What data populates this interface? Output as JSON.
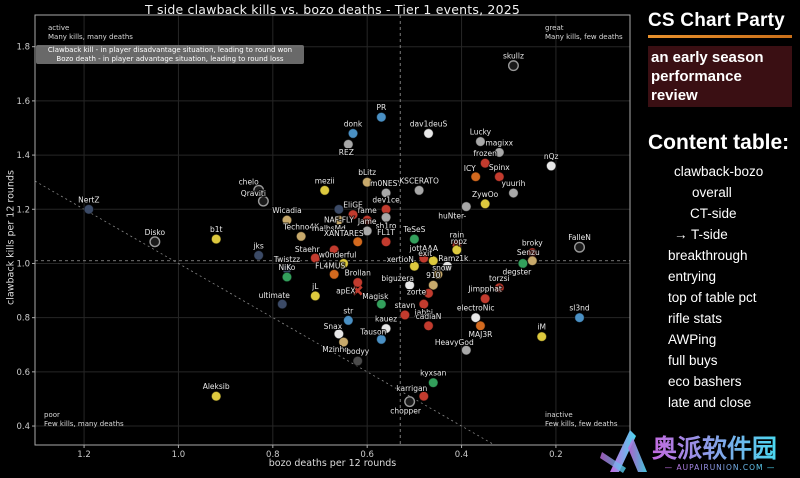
{
  "title": "T side clawback kills vs. bozo deaths - Tier 1 events, 2025",
  "plot": {
    "corner_tl": "active\nMany kills, many deaths",
    "corner_tr": "great\nMany kills, few deaths",
    "corner_bl": "poor\nFew kills, many deaths",
    "corner_br": "inactive\nFew kills, few deaths",
    "legend_line1": "Clawback kill - in player disadvantage situation, leading to round won",
    "legend_line2": "Bozo death - in player advantage situation, leading to round loss"
  },
  "chart_data": {
    "type": "scatter",
    "title": "T side clawback kills vs. bozo deaths - Tier 1 events, 2025",
    "xlabel": "bozo deaths per 12 rounds",
    "ylabel": "clawback kills per 12 rounds",
    "x_axis": {
      "ticks": [
        1.2,
        1.0,
        0.8,
        0.6,
        0.4,
        0.2
      ],
      "range_left": 1.304,
      "range_right": 0.043,
      "inverted": true
    },
    "y_axis": {
      "ticks": [
        0.4,
        0.6,
        0.8,
        1.0,
        1.2,
        1.4,
        1.6,
        1.8
      ],
      "range_bottom": 0.33,
      "range_top": 1.917
    },
    "mean_x": 0.53,
    "mean_y": 1.01,
    "identity_line": true,
    "grid": true,
    "palette": {
      "red": "#c23b2e",
      "orange": "#d2691e",
      "yellow": "#ddc93e",
      "khaki": "#c7a96b",
      "green": "#33a05c",
      "blue": "#4a90c4",
      "navy": "#3b4a66",
      "white": "#e8e8e8",
      "gray": "#a8a8a8",
      "dark": "#4a4a4a",
      "open": "#1a1a1a"
    },
    "points": [
      {
        "name": "skullz",
        "x": 0.29,
        "y": 1.73,
        "c": "open"
      },
      {
        "name": "PR",
        "x": 0.57,
        "y": 1.54,
        "c": "blue"
      },
      {
        "name": "donk",
        "x": 0.63,
        "y": 1.48,
        "c": "blue"
      },
      {
        "name": "REZ",
        "x": 0.64,
        "y": 1.44,
        "c": "gray",
        "la": [
          -2,
          11
        ]
      },
      {
        "name": "dav1deuS",
        "x": 0.47,
        "y": 1.48,
        "c": "white"
      },
      {
        "name": "Lucky",
        "x": 0.36,
        "y": 1.45,
        "c": "gray"
      },
      {
        "name": "magixx",
        "x": 0.32,
        "y": 1.41,
        "c": "gray"
      },
      {
        "name": "frozen",
        "x": 0.35,
        "y": 1.37,
        "c": "red"
      },
      {
        "name": "Spinx",
        "x": 0.32,
        "y": 1.32,
        "c": "red"
      },
      {
        "name": "ICY",
        "x": 0.37,
        "y": 1.32,
        "c": "orange",
        "la": [
          -6,
          -6
        ]
      },
      {
        "name": "nQz",
        "x": 0.21,
        "y": 1.36,
        "c": "white"
      },
      {
        "name": "yuurih",
        "x": 0.29,
        "y": 1.26,
        "c": "gray"
      },
      {
        "name": "ZywOo",
        "x": 0.35,
        "y": 1.22,
        "c": "yellow"
      },
      {
        "name": "huNter-",
        "x": 0.39,
        "y": 1.21,
        "c": "gray",
        "la": [
          -14,
          12
        ]
      },
      {
        "name": "mezii",
        "x": 0.69,
        "y": 1.27,
        "c": "yellow"
      },
      {
        "name": "chelo",
        "x": 0.83,
        "y": 1.27,
        "c": "open",
        "la": [
          -10,
          -6
        ]
      },
      {
        "name": "Qraviti",
        "x": 0.82,
        "y": 1.23,
        "c": "open",
        "la": [
          -10,
          -5
        ]
      },
      {
        "name": "bLitz",
        "x": 0.6,
        "y": 1.3,
        "c": "khaki"
      },
      {
        "name": "m0NESY",
        "x": 0.56,
        "y": 1.26,
        "c": "gray"
      },
      {
        "name": "KSCERATO",
        "x": 0.49,
        "y": 1.27,
        "c": "gray"
      },
      {
        "name": "dev1ce",
        "x": 0.56,
        "y": 1.2,
        "c": "red"
      },
      {
        "name": "NertZ",
        "x": 1.19,
        "y": 1.2,
        "c": "navy"
      },
      {
        "name": "Disko",
        "x": 1.05,
        "y": 1.08,
        "c": "open"
      },
      {
        "name": "b1t",
        "x": 0.92,
        "y": 1.09,
        "c": "yellow"
      },
      {
        "name": "jks",
        "x": 0.83,
        "y": 1.03,
        "c": "navy"
      },
      {
        "name": "Wicadia",
        "x": 0.77,
        "y": 1.16,
        "c": "khaki"
      },
      {
        "name": "Techno4K",
        "x": 0.74,
        "y": 1.1,
        "c": "khaki"
      },
      {
        "name": "malbsMd",
        "x": 0.66,
        "y": 1.16,
        "c": "khaki",
        "la": [
          -10,
          11
        ]
      },
      {
        "name": "NAF-FLY",
        "x": 0.66,
        "y": 1.2,
        "c": "navy",
        "la": [
          0,
          13
        ]
      },
      {
        "name": "XANTARES",
        "x": 0.62,
        "y": 1.08,
        "c": "orange",
        "la": [
          -14,
          -6
        ]
      },
      {
        "name": "Staehr",
        "x": 0.71,
        "y": 1.02,
        "c": "red",
        "la": [
          -8,
          -6
        ]
      },
      {
        "name": "w0nderful",
        "x": 0.65,
        "y": 1.0,
        "c": "yellow",
        "la": [
          -6,
          -6
        ]
      },
      {
        "name": "",
        "x": 0.67,
        "y": 1.05,
        "c": "red"
      },
      {
        "name": "FL4MUS",
        "x": 0.67,
        "y": 0.96,
        "c": "orange",
        "la": [
          -4,
          -6
        ]
      },
      {
        "name": "Twistzz",
        "x": 0.77,
        "y": 0.98,
        "c": "navy"
      },
      {
        "name": "NiKo",
        "x": 0.77,
        "y": 0.95,
        "c": "green"
      },
      {
        "name": "ultimate",
        "x": 0.78,
        "y": 0.85,
        "c": "navy",
        "la": [
          -8,
          -6
        ]
      },
      {
        "name": "fame",
        "x": 0.6,
        "y": 1.16,
        "c": "red"
      },
      {
        "name": "sh1ro",
        "x": 0.56,
        "y": 1.17,
        "c": "gray",
        "la": [
          0,
          11
        ]
      },
      {
        "name": "Jame",
        "x": 0.6,
        "y": 1.12,
        "c": "gray"
      },
      {
        "name": "EliGE",
        "x": 0.63,
        "y": 1.18,
        "c": "red"
      },
      {
        "name": "FL1T",
        "x": 0.56,
        "y": 1.08,
        "c": "red"
      },
      {
        "name": "TeSeS",
        "x": 0.5,
        "y": 1.09,
        "c": "green"
      },
      {
        "name": "rain",
        "x": 0.41,
        "y": 1.07,
        "c": "red"
      },
      {
        "name": "ropz",
        "x": 0.41,
        "y": 1.05,
        "c": "yellow",
        "la": [
          2,
          -6
        ]
      },
      {
        "name": "jottAAA",
        "x": 0.48,
        "y": 1.02,
        "c": "red"
      },
      {
        "name": "exit",
        "x": 0.46,
        "y": 1.01,
        "c": "yellow",
        "la": [
          -8,
          -5
        ]
      },
      {
        "name": "xertioN",
        "x": 0.5,
        "y": 0.99,
        "c": "yellow",
        "la": [
          -14,
          -4
        ]
      },
      {
        "name": "Ramz1k",
        "x": 0.43,
        "y": 0.99,
        "c": "white",
        "la": [
          6,
          -5
        ]
      },
      {
        "name": "snow",
        "x": 0.45,
        "y": 0.96,
        "c": "khaki",
        "la": [
          4,
          -4
        ]
      },
      {
        "name": "910",
        "x": 0.46,
        "y": 0.92,
        "c": "khaki"
      },
      {
        "name": "biguzera",
        "x": 0.51,
        "y": 0.92,
        "c": "white",
        "la": [
          -12,
          -4
        ]
      },
      {
        "name": "zorte",
        "x": 0.47,
        "y": 0.89,
        "c": "red",
        "la": [
          -12,
          1
        ]
      },
      {
        "name": "jabbi",
        "x": 0.48,
        "y": 0.85,
        "c": "red",
        "la": [
          0,
          11
        ]
      },
      {
        "name": "Brollan",
        "x": 0.62,
        "y": 0.93,
        "c": "red"
      },
      {
        "name": "apEX",
        "x": 0.62,
        "y": 0.9,
        "c": "red",
        "m": "x",
        "la": [
          -12,
          3
        ]
      },
      {
        "name": "jL",
        "x": 0.71,
        "y": 0.88,
        "c": "yellow"
      },
      {
        "name": "Magisk",
        "x": 0.57,
        "y": 0.85,
        "c": "green",
        "la": [
          -6,
          -5
        ]
      },
      {
        "name": "str",
        "x": 0.64,
        "y": 0.79,
        "c": "blue"
      },
      {
        "name": "stavn",
        "x": 0.52,
        "y": 0.81,
        "c": "red"
      },
      {
        "name": "kauez",
        "x": 0.56,
        "y": 0.76,
        "c": "white"
      },
      {
        "name": "Tauson",
        "x": 0.57,
        "y": 0.72,
        "c": "blue",
        "la": [
          -8,
          -5
        ]
      },
      {
        "name": "cadiaN",
        "x": 0.47,
        "y": 0.77,
        "c": "red"
      },
      {
        "name": "Snax",
        "x": 0.66,
        "y": 0.74,
        "c": "white",
        "la": [
          -6,
          -5
        ]
      },
      {
        "name": "Mzinho",
        "x": 0.65,
        "y": 0.71,
        "c": "khaki",
        "la": [
          -8,
          10
        ]
      },
      {
        "name": "bodyy",
        "x": 0.62,
        "y": 0.64,
        "c": "dark"
      },
      {
        "name": "HeavyGod",
        "x": 0.39,
        "y": 0.68,
        "c": "gray",
        "la": [
          -12,
          -5
        ]
      },
      {
        "name": "kyxsan",
        "x": 0.46,
        "y": 0.56,
        "c": "green"
      },
      {
        "name": "karrigan",
        "x": 0.48,
        "y": 0.51,
        "c": "red",
        "la": [
          -12,
          -5
        ]
      },
      {
        "name": "chopper",
        "x": 0.51,
        "y": 0.49,
        "c": "open",
        "la": [
          -4,
          12
        ]
      },
      {
        "name": "Aleksib",
        "x": 0.92,
        "y": 0.51,
        "c": "yellow"
      },
      {
        "name": "broky",
        "x": 0.25,
        "y": 1.04,
        "c": "red"
      },
      {
        "name": "Senzu",
        "x": 0.25,
        "y": 1.01,
        "c": "khaki",
        "la": [
          -4,
          -6
        ]
      },
      {
        "name": "degster",
        "x": 0.27,
        "y": 1.0,
        "c": "green",
        "la": [
          -6,
          11
        ]
      },
      {
        "name": "FalleN",
        "x": 0.15,
        "y": 1.06,
        "c": "open"
      },
      {
        "name": "torzsi",
        "x": 0.32,
        "y": 0.91,
        "c": "red"
      },
      {
        "name": "Jimpphat",
        "x": 0.35,
        "y": 0.87,
        "c": "red"
      },
      {
        "name": "electroNic",
        "x": 0.37,
        "y": 0.8,
        "c": "white"
      },
      {
        "name": "MAJ3R",
        "x": 0.36,
        "y": 0.77,
        "c": "orange",
        "la": [
          0,
          11
        ]
      },
      {
        "name": "sl3nd",
        "x": 0.15,
        "y": 0.8,
        "c": "blue"
      },
      {
        "name": "iM",
        "x": 0.23,
        "y": 0.73,
        "c": "yellow"
      }
    ]
  },
  "sidebar": {
    "title": "CS Chart Party",
    "subtitle": "an early season performance review",
    "heading": "Content table:",
    "accent_color": "#e8912d",
    "items": [
      "clawback-bozo",
      "overall",
      "CT-side",
      "→ T-side",
      "breakthrough",
      "entrying",
      "top of table pct",
      "rifle stats",
      "AWPing",
      "full buys",
      "eco bashers",
      "late and close"
    ]
  },
  "watermark": {
    "text": "奥派软件园",
    "subtext": "AUPAIRUNION.COM",
    "color_start": "#c36ae0",
    "color_end": "#4ad8f0"
  }
}
